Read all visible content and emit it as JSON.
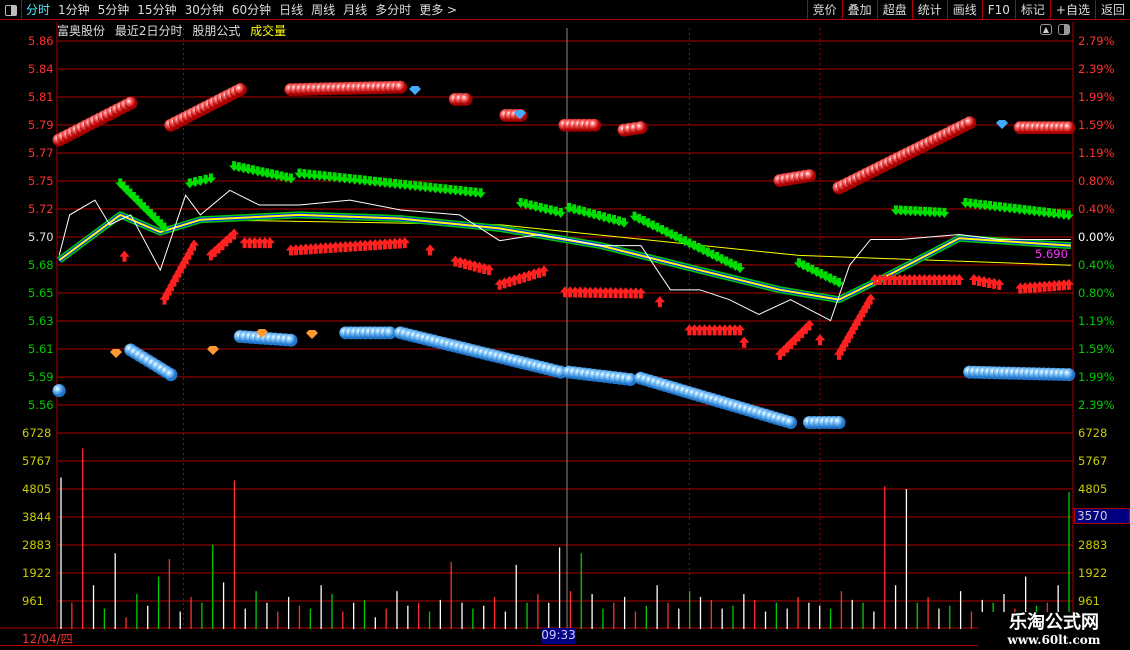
{
  "toolbar": {
    "periods": [
      "分时",
      "1分钟",
      "5分钟",
      "15分钟",
      "30分钟",
      "60分钟",
      "日线",
      "周线",
      "月线",
      "多分时",
      "更多 >"
    ],
    "active_index": 0,
    "right_buttons": [
      "竞价",
      "叠加",
      "超盘",
      "统计",
      "画线",
      "F10",
      "标记",
      "+自选",
      "返回"
    ]
  },
  "header": {
    "stock_name": "富奥股份",
    "mode": "最近2日分时",
    "formula": "股朋公式",
    "indicator": "成交量"
  },
  "cursor": {
    "price_label": "5.690",
    "volume_label": "3570",
    "date_label": "12/04/四",
    "time_label": "09:33"
  },
  "watermark": {
    "name": "乐淘公式网",
    "url": "www.60lt.com"
  },
  "colors": {
    "bg": "#000000",
    "grid": "#b00000",
    "up": "#ff3030",
    "down": "#00cc00",
    "price_line": "#ffffff",
    "avg_line": "#ffff00",
    "vol_axis": "#cccc00"
  },
  "chart_data": {
    "type": "line",
    "x_unit": "minute index over 2 trading days (0-481)",
    "price_ticks": [
      "5.86",
      "5.84",
      "5.81",
      "5.79",
      "5.77",
      "5.75",
      "5.72",
      "5.70",
      "5.68",
      "5.65",
      "5.63",
      "5.61",
      "5.59",
      "5.56"
    ],
    "pct_ticks": [
      "2.79%",
      "2.39%",
      "1.99%",
      "1.59%",
      "1.19%",
      "0.80%",
      "0.40%",
      "0.00%",
      "0.40%",
      "0.80%",
      "1.19%",
      "1.59%",
      "1.99%",
      "2.39%"
    ],
    "volume_ticks": [
      "6728",
      "5767",
      "4805",
      "3844",
      "2883",
      "1922",
      "961"
    ],
    "ylim": [
      5.56,
      5.86
    ],
    "price": [
      [
        1,
        5.685
      ],
      [
        6,
        5.718
      ],
      [
        18,
        5.73
      ],
      [
        25,
        5.71
      ],
      [
        35,
        5.718
      ],
      [
        49,
        5.673
      ],
      [
        61,
        5.734
      ],
      [
        68,
        5.718
      ],
      [
        82,
        5.738
      ],
      [
        96,
        5.726
      ],
      [
        115,
        5.726
      ],
      [
        139,
        5.73
      ],
      [
        163,
        5.722
      ],
      [
        191,
        5.718
      ],
      [
        210,
        5.697
      ],
      [
        229,
        5.702
      ],
      [
        243,
        5.698
      ],
      [
        258,
        5.693
      ],
      [
        277,
        5.693
      ],
      [
        291,
        5.657
      ],
      [
        305,
        5.657
      ],
      [
        319,
        5.649
      ],
      [
        333,
        5.637
      ],
      [
        348,
        5.649
      ],
      [
        367,
        5.632
      ],
      [
        376,
        5.677
      ],
      [
        386,
        5.698
      ],
      [
        400,
        5.698
      ],
      [
        428,
        5.702
      ],
      [
        447,
        5.698
      ],
      [
        481,
        5.698
      ]
    ],
    "avg_fast": [
      [
        1,
        5.681
      ],
      [
        30,
        5.718
      ],
      [
        49,
        5.704
      ],
      [
        68,
        5.714
      ],
      [
        115,
        5.718
      ],
      [
        163,
        5.715
      ],
      [
        210,
        5.707
      ],
      [
        258,
        5.693
      ],
      [
        305,
        5.673
      ],
      [
        343,
        5.657
      ],
      [
        371,
        5.649
      ],
      [
        390,
        5.665
      ],
      [
        428,
        5.699
      ],
      [
        481,
        5.693
      ]
    ],
    "avg_slow": [
      [
        68,
        5.714
      ],
      [
        210,
        5.71
      ],
      [
        352,
        5.685
      ],
      [
        481,
        5.677
      ]
    ],
    "red_ball_chains": [
      [
        [
          1,
          5.779
        ],
        [
          35,
          5.809
        ]
      ],
      [
        [
          54,
          5.791
        ],
        [
          87,
          5.82
        ]
      ],
      [
        [
          111,
          5.82
        ],
        [
          163,
          5.822
        ]
      ],
      [
        [
          189,
          5.812
        ],
        [
          194,
          5.812
        ]
      ],
      [
        [
          213,
          5.799
        ],
        [
          220,
          5.799
        ]
      ],
      [
        [
          241,
          5.791
        ],
        [
          255,
          5.791
        ]
      ],
      [
        [
          269,
          5.787
        ],
        [
          277,
          5.789
        ]
      ],
      [
        [
          343,
          5.746
        ],
        [
          357,
          5.75
        ]
      ],
      [
        [
          371,
          5.74
        ],
        [
          433,
          5.793
        ]
      ],
      [
        [
          457,
          5.789
        ],
        [
          480,
          5.789
        ]
      ]
    ],
    "blue_ball_chains": [
      [
        [
          1,
          5.575
        ],
        [
          1,
          5.575
        ]
      ],
      [
        [
          35,
          5.608
        ],
        [
          54,
          5.588
        ]
      ],
      [
        [
          87,
          5.619
        ],
        [
          111,
          5.616
        ]
      ],
      [
        [
          137,
          5.622
        ],
        [
          158,
          5.622
        ]
      ],
      [
        [
          163,
          5.622
        ],
        [
          239,
          5.59
        ]
      ],
      [
        [
          243,
          5.59
        ],
        [
          272,
          5.584
        ]
      ],
      [
        [
          277,
          5.585
        ],
        [
          348,
          5.549
        ]
      ],
      [
        [
          357,
          5.549
        ],
        [
          371,
          5.549
        ]
      ],
      [
        [
          433,
          5.59
        ],
        [
          480,
          5.588
        ]
      ]
    ],
    "green_arrow_chains": [
      [
        [
          30,
          5.742
        ],
        [
          51,
          5.706
        ]
      ],
      [
        [
          63,
          5.742
        ],
        [
          73,
          5.746
        ]
      ],
      [
        [
          84,
          5.756
        ],
        [
          111,
          5.746
        ]
      ],
      [
        [
          115,
          5.75
        ],
        [
          201,
          5.734
        ]
      ],
      [
        [
          220,
          5.726
        ],
        [
          239,
          5.718
        ]
      ],
      [
        [
          243,
          5.722
        ],
        [
          269,
          5.71
        ]
      ],
      [
        [
          274,
          5.715
        ],
        [
          324,
          5.673
        ]
      ],
      [
        [
          352,
          5.677
        ],
        [
          371,
          5.661
        ]
      ],
      [
        [
          398,
          5.72
        ],
        [
          421,
          5.718
        ]
      ],
      [
        [
          431,
          5.726
        ],
        [
          480,
          5.716
        ]
      ]
    ],
    "red_arrow_chains": [
      [
        [
          32,
          5.684
        ],
        [
          32,
          5.684
        ]
      ],
      [
        [
          51,
          5.649
        ],
        [
          65,
          5.693
        ]
      ],
      [
        [
          73,
          5.685
        ],
        [
          84,
          5.702
        ]
      ],
      [
        [
          89,
          5.695
        ],
        [
          101,
          5.695
        ]
      ],
      [
        [
          111,
          5.689
        ],
        [
          165,
          5.695
        ]
      ],
      [
        [
          177,
          5.689
        ],
        [
          177,
          5.689
        ]
      ],
      [
        [
          189,
          5.68
        ],
        [
          205,
          5.673
        ]
      ],
      [
        [
          210,
          5.661
        ],
        [
          231,
          5.672
        ]
      ],
      [
        [
          241,
          5.655
        ],
        [
          277,
          5.654
        ]
      ],
      [
        [
          286,
          5.647
        ],
        [
          286,
          5.647
        ]
      ],
      [
        [
          300,
          5.624
        ],
        [
          324,
          5.624
        ]
      ],
      [
        [
          326,
          5.614
        ],
        [
          326,
          5.614
        ]
      ],
      [
        [
          343,
          5.604
        ],
        [
          357,
          5.628
        ]
      ],
      [
        [
          362,
          5.616
        ],
        [
          362,
          5.616
        ]
      ],
      [
        [
          371,
          5.604
        ],
        [
          386,
          5.649
        ]
      ],
      [
        [
          388,
          5.665
        ],
        [
          428,
          5.665
        ]
      ],
      [
        [
          435,
          5.665
        ],
        [
          447,
          5.661
        ]
      ],
      [
        [
          457,
          5.658
        ],
        [
          480,
          5.661
        ]
      ]
    ],
    "volume": [
      5200,
      900,
      6200,
      1500,
      700,
      2600,
      400,
      1200,
      800,
      1800,
      2400,
      600,
      1100,
      900,
      2900,
      1600,
      5100,
      700,
      1300,
      900,
      600,
      1100,
      800,
      700,
      1500,
      1200,
      600,
      900,
      1000,
      400,
      700,
      1300,
      800,
      900,
      600,
      1000,
      2300,
      900,
      700,
      800,
      1100,
      600,
      2200,
      900,
      1200,
      900,
      2800,
      1300,
      2600,
      1200,
      700,
      900,
      1100,
      600,
      800,
      1500,
      900,
      700,
      1300,
      1100,
      1000,
      700,
      800,
      1200,
      1000,
      600,
      900,
      700,
      1100,
      900,
      800,
      700,
      1300,
      1000,
      900,
      600,
      4900,
      1500,
      4800,
      900,
      1100,
      700,
      800,
      1300,
      600,
      1000,
      900,
      1200,
      700,
      1800,
      800,
      900,
      1500,
      4700
    ],
    "volume_colors": [
      "w",
      "r",
      "r",
      "w",
      "g",
      "w",
      "r",
      "g",
      "w",
      "g",
      "r",
      "w",
      "r",
      "g",
      "g",
      "w",
      "r",
      "w",
      "g",
      "w",
      "r",
      "w",
      "r",
      "g",
      "w",
      "g",
      "r",
      "w",
      "g",
      "w",
      "r",
      "w",
      "w",
      "r",
      "g",
      "w",
      "r",
      "w",
      "g",
      "w",
      "r",
      "w",
      "w",
      "g",
      "r",
      "w",
      "w",
      "r",
      "g",
      "w",
      "g",
      "r",
      "w",
      "r",
      "g",
      "w",
      "r",
      "w",
      "g",
      "w",
      "r",
      "w",
      "g",
      "w",
      "r",
      "w",
      "g",
      "w",
      "r",
      "w",
      "w",
      "g",
      "r",
      "w",
      "g",
      "w",
      "r",
      "w",
      "w",
      "g",
      "r",
      "w",
      "g",
      "w",
      "r",
      "w",
      "g",
      "w",
      "r",
      "w",
      "g",
      "r",
      "w",
      "g"
    ]
  }
}
